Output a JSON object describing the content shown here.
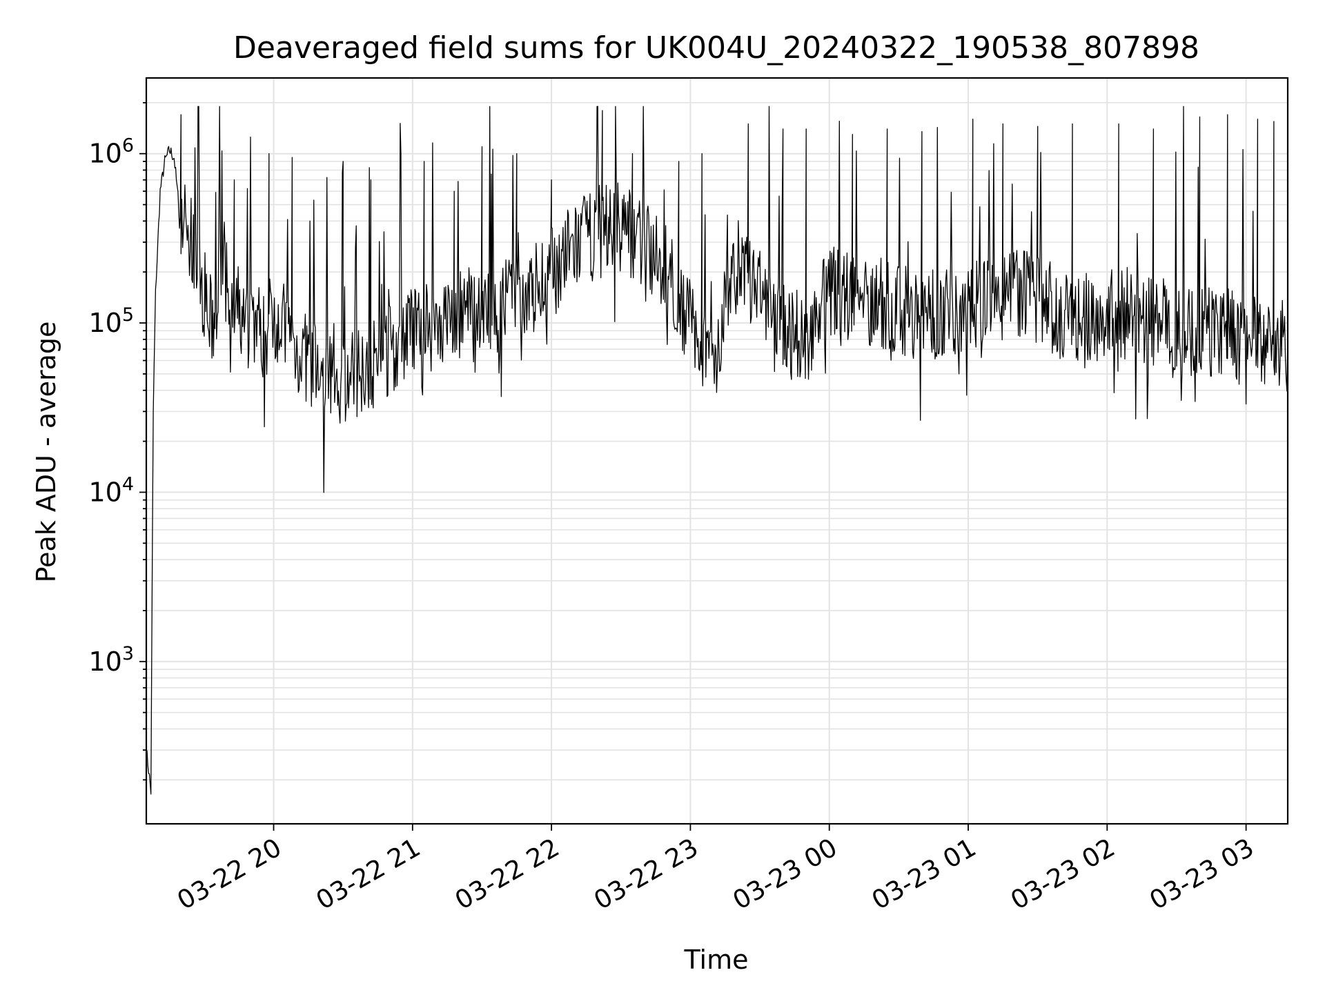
{
  "chart_data": {
    "type": "line",
    "title": "Deaveraged field sums for UK004U_20240322_190538_807898",
    "xlabel": "Time",
    "ylabel": "Peak ADU - average",
    "yscale": "log",
    "ylim": [
      110,
      2800000
    ],
    "xlim": [
      "2024-03-22 19:05",
      "2024-03-23 03:18"
    ],
    "grid": true,
    "line_color": "#000000",
    "x_ticks": [
      {
        "label": "03-22 20",
        "time": "2024-03-22 20:00"
      },
      {
        "label": "03-22 21",
        "time": "2024-03-22 21:00"
      },
      {
        "label": "03-22 22",
        "time": "2024-03-22 22:00"
      },
      {
        "label": "03-22 23",
        "time": "2024-03-22 23:00"
      },
      {
        "label": "03-23 00",
        "time": "2024-03-23 00:00"
      },
      {
        "label": "03-23 01",
        "time": "2024-03-23 01:00"
      },
      {
        "label": "03-23 02",
        "time": "2024-03-23 02:00"
      },
      {
        "label": "03-23 03",
        "time": "2024-03-23 03:00"
      }
    ],
    "y_ticks": [
      {
        "base": "10",
        "exp": "3",
        "value": 1000
      },
      {
        "base": "10",
        "exp": "4",
        "value": 10000
      },
      {
        "base": "10",
        "exp": "5",
        "value": 100000
      },
      {
        "base": "10",
        "exp": "6",
        "value": 1000000
      }
    ],
    "series": [
      {
        "x": [
          "2024-03-22 19:05",
          "2024-03-22 19:06",
          "2024-03-22 19:07",
          "2024-03-22 19:08",
          "2024-03-22 19:09",
          "2024-03-22 19:11",
          "2024-03-22 19:13",
          "2024-03-22 19:15",
          "2024-03-22 19:17",
          "2024-03-22 19:19",
          "2024-03-22 19:20",
          "2024-03-22 19:22",
          "2024-03-22 19:24",
          "2024-03-22 19:26",
          "2024-03-22 19:28",
          "2024-03-22 19:30",
          "2024-03-22 19:31",
          "2024-03-22 19:33",
          "2024-03-22 19:35",
          "2024-03-22 19:36",
          "2024-03-22 19:38",
          "2024-03-22 19:40",
          "2024-03-22 19:42",
          "2024-03-22 19:45",
          "2024-03-22 19:48",
          "2024-03-22 19:50",
          "2024-03-22 19:53",
          "2024-03-22 19:56",
          "2024-03-22 20:00",
          "2024-03-22 20:05",
          "2024-03-22 20:10",
          "2024-03-22 20:15",
          "2024-03-22 20:20",
          "2024-03-22 20:25",
          "2024-03-22 20:30",
          "2024-03-22 20:35",
          "2024-03-22 20:40",
          "2024-03-22 20:45",
          "2024-03-22 20:50",
          "2024-03-22 20:55",
          "2024-03-22 21:00",
          "2024-03-22 21:10",
          "2024-03-22 21:20",
          "2024-03-22 21:30",
          "2024-03-22 21:40",
          "2024-03-22 21:50",
          "2024-03-22 22:00",
          "2024-03-22 22:10",
          "2024-03-22 22:20",
          "2024-03-22 22:30",
          "2024-03-22 22:40",
          "2024-03-22 22:50",
          "2024-03-22 23:00",
          "2024-03-22 23:10",
          "2024-03-22 23:20",
          "2024-03-22 23:30",
          "2024-03-22 23:40",
          "2024-03-22 23:50",
          "2024-03-23 00:00",
          "2024-03-23 00:15",
          "2024-03-23 00:30",
          "2024-03-23 00:45",
          "2024-03-23 01:00",
          "2024-03-23 01:15",
          "2024-03-23 01:30",
          "2024-03-23 01:45",
          "2024-03-23 02:00",
          "2024-03-23 02:15",
          "2024-03-23 02:30",
          "2024-03-23 02:45",
          "2024-03-23 02:55",
          "2024-03-23 03:00",
          "2024-03-23 03:10",
          "2024-03-23 03:18"
        ],
        "y": [
          300,
          230,
          170,
          30000,
          150000,
          600000,
          900000,
          1050000,
          950000,
          500000,
          450000,
          380000,
          300000,
          250000,
          180000,
          150000,
          120000,
          100000,
          90000,
          200000,
          250000,
          150000,
          100000,
          120000,
          90000,
          110000,
          100000,
          80000,
          120000,
          90000,
          70000,
          60000,
          50000,
          55000,
          45000,
          50000,
          60000,
          55000,
          70000,
          80000,
          90000,
          100000,
          110000,
          120000,
          130000,
          150000,
          200000,
          280000,
          350000,
          380000,
          300000,
          200000,
          100000,
          60000,
          220000,
          150000,
          90000,
          80000,
          160000,
          140000,
          120000,
          110000,
          130000,
          150000,
          140000,
          100000,
          120000,
          110000,
          90000,
          90000,
          85000,
          75000,
          80000,
          70000
        ],
        "spike_times": [
          "2024-03-22 19:20",
          "2024-03-22 19:43",
          "2024-03-22 19:58",
          "2024-03-22 20:08",
          "2024-03-22 20:30",
          "2024-03-22 20:42",
          "2024-03-22 21:05",
          "2024-03-22 21:18",
          "2024-03-22 21:30",
          "2024-03-22 21:45",
          "2024-03-22 22:00",
          "2024-03-22 22:22",
          "2024-03-22 22:35",
          "2024-03-22 22:55",
          "2024-03-22 23:05",
          "2024-03-22 23:25",
          "2024-03-22 23:40",
          "2024-03-22 23:50",
          "2024-03-23 00:10",
          "2024-03-23 00:25",
          "2024-03-23 00:40",
          "2024-03-23 01:02",
          "2024-03-23 01:15",
          "2024-03-23 01:30",
          "2024-03-23 01:45",
          "2024-03-23 02:05",
          "2024-03-23 02:20",
          "2024-03-23 02:40",
          "2024-03-23 02:52",
          "2024-03-23 03:05",
          "2024-03-23 03:12"
        ],
        "spike_values": [
          1700000,
          700000,
          1000000,
          950000,
          900000,
          700000,
          900000,
          600000,
          1100000,
          1000000,
          700000,
          1800000,
          1000000,
          900000,
          1000000,
          1500000,
          1400000,
          1400000,
          1300000,
          1400000,
          1350000,
          1600000,
          1500000,
          1450000,
          1500000,
          1500000,
          1400000,
          1650000,
          1700000,
          1600000,
          1550000
        ]
      }
    ]
  }
}
